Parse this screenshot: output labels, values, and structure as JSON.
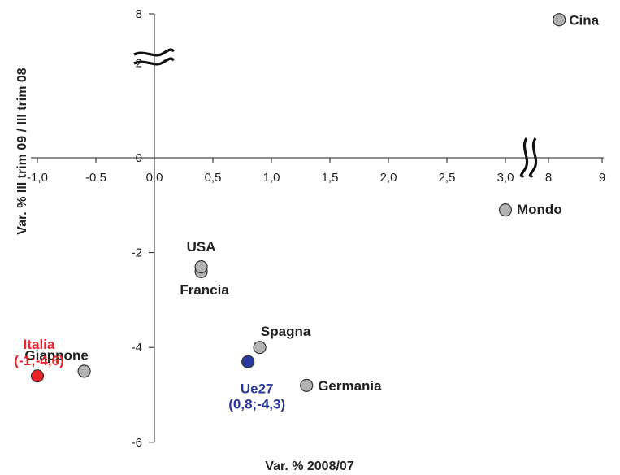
{
  "chart_data": {
    "type": "scatter",
    "xlabel": "Var. % 2008/07",
    "ylabel": "Var. % III trim 09 / III trim 08",
    "x_ticks": [
      "-1,0",
      "-0,5",
      "0,0",
      "0,5",
      "1,0",
      "1,5",
      "2,0",
      "2,5",
      "3,0",
      "8",
      "9"
    ],
    "y_ticks": [
      "8",
      "2",
      "0",
      "-2",
      "-4",
      "-6"
    ],
    "x_axis_break": "between 3 and 8",
    "y_axis_break": "between 2 and 8",
    "grid": false,
    "legend": "none",
    "points": [
      {
        "name": "Cina",
        "x": 8.2,
        "y": 7.5,
        "color": "#b3b3b3",
        "label_color": "#222222"
      },
      {
        "name": "Mondo",
        "x": 3.0,
        "y": -1.1,
        "color": "#b3b3b3",
        "label_color": "#222222"
      },
      {
        "name": "USA",
        "x": 0.4,
        "y": -2.3,
        "color": "#b3b3b3",
        "label_color": "#222222"
      },
      {
        "name": "Francia",
        "x": 0.4,
        "y": -2.4,
        "color": "#b3b3b3",
        "label_color": "#222222"
      },
      {
        "name": "Spagna",
        "x": 0.9,
        "y": -4.0,
        "color": "#b3b3b3",
        "label_color": "#222222"
      },
      {
        "name": "Germania",
        "x": 1.3,
        "y": -4.8,
        "color": "#b3b3b3",
        "label_color": "#222222"
      },
      {
        "name": "Giappone",
        "x": -0.6,
        "y": -4.5,
        "color": "#b3b3b3",
        "label_color": "#222222"
      },
      {
        "name": "Italia",
        "sublabel": "(-1;-4,6)",
        "x": -1.0,
        "y": -4.6,
        "color": "#e8242b",
        "label_color": "#e8242b"
      },
      {
        "name": "Ue27",
        "sublabel": "(0,8;-4,3)",
        "x": 0.8,
        "y": -4.3,
        "color": "#2a3a9c",
        "label_color": "#2a3a9c"
      }
    ]
  }
}
